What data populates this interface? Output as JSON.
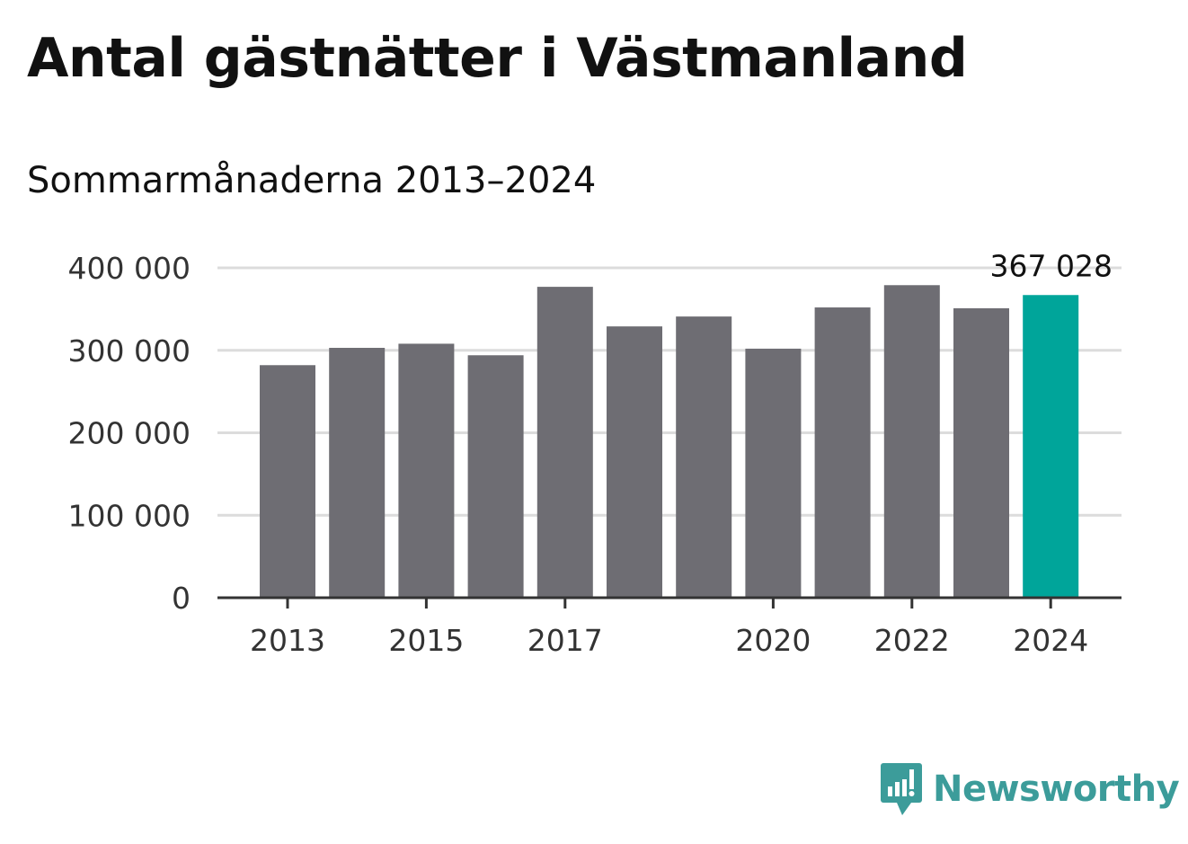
{
  "chart_data": {
    "type": "bar",
    "title": "Antal gästnätter i Västmanland",
    "subtitle": "Sommarmånaderna 2013–2024",
    "categories": [
      "2013",
      "2014",
      "2015",
      "2016",
      "2017",
      "2018",
      "2019",
      "2020",
      "2021",
      "2022",
      "2023",
      "2024"
    ],
    "values": [
      282000,
      303000,
      308000,
      294000,
      377000,
      329000,
      341000,
      302000,
      352000,
      379000,
      351000,
      367028
    ],
    "x_tick_labels": [
      "2013",
      "2015",
      "2017",
      "2020",
      "2022",
      "2024"
    ],
    "y_ticks": [
      0,
      100000,
      200000,
      300000,
      400000
    ],
    "y_tick_labels": [
      "0",
      "100 000",
      "200 000",
      "300 000",
      "400 000"
    ],
    "ylim": [
      0,
      400000
    ],
    "grid": true,
    "xlabel": "",
    "ylabel": "",
    "annotation": {
      "category": "2024",
      "text": "367 028"
    },
    "colors": {
      "bar": "#6e6d73",
      "highlight": "#00a59a",
      "grid": "#dcdcdc",
      "axis": "#333333"
    }
  },
  "brand": {
    "name": "Newsworthy",
    "icon": "newsworthy-logo-icon",
    "color": "#3c9c9a"
  }
}
